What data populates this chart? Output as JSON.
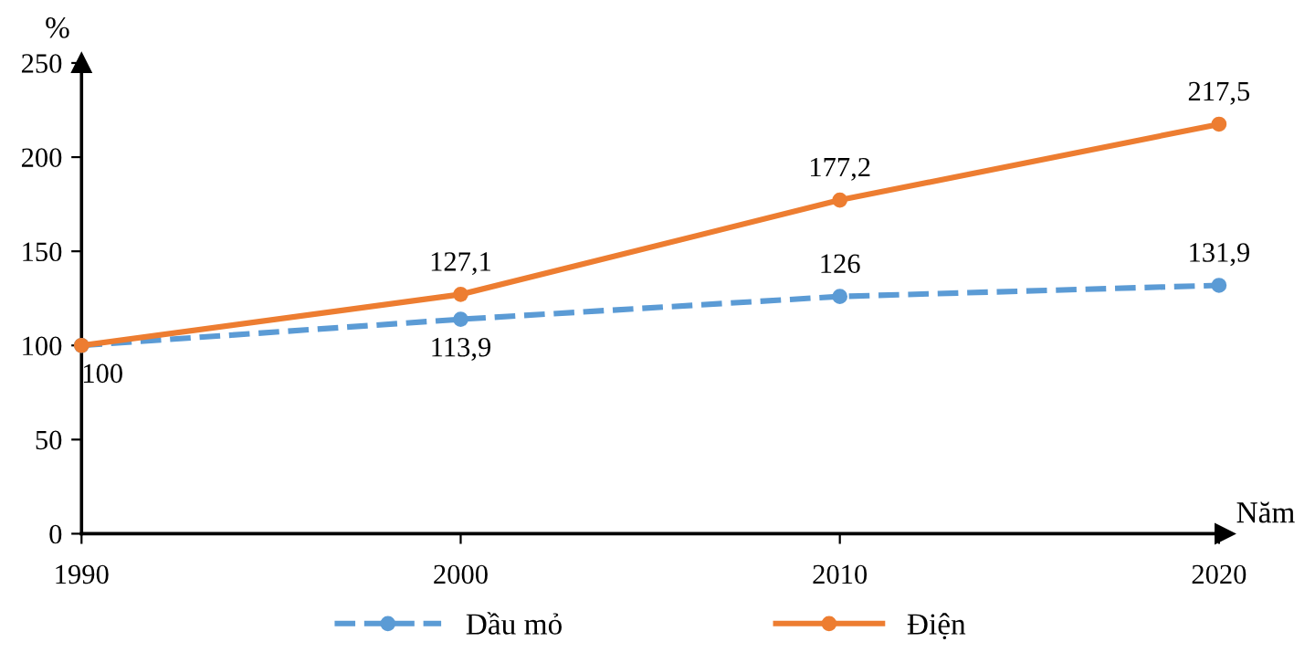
{
  "chart_data": {
    "type": "line",
    "ylabel": "%",
    "xlabel": "Năm",
    "x": [
      1990,
      2000,
      2010,
      2020
    ],
    "xlim": [
      1990,
      2020
    ],
    "xticks": [
      1990,
      2000,
      2010,
      2020
    ],
    "ylim": [
      0,
      250
    ],
    "yticks": [
      0,
      50,
      100,
      150,
      200,
      250
    ],
    "grid": false,
    "legend": "bottom",
    "marker": "circle",
    "series": [
      {
        "name": "Dầu mỏ",
        "color": "#5b9bd5",
        "line_style": "dashed",
        "values": [
          100,
          113.9,
          126,
          131.9
        ],
        "value_labels": [
          "100",
          "113,9",
          "126",
          "131,9"
        ]
      },
      {
        "name": "Điện",
        "color": "#ed7d31",
        "line_style": "solid",
        "values": [
          100,
          127.1,
          177.2,
          217.5
        ],
        "value_labels": [
          null,
          "127,1",
          "177,2",
          "217,5"
        ]
      }
    ]
  }
}
